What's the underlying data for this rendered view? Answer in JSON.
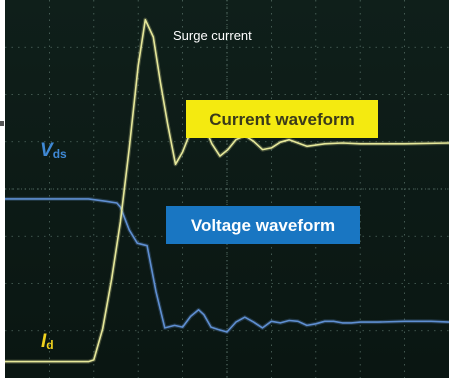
{
  "chart_data": {
    "type": "line",
    "title": "",
    "xlabel": "",
    "ylabel": "",
    "colors": {
      "background": "#0d1a16",
      "grid": "#6e8a80",
      "current_trace": "#e6e89a",
      "voltage_trace": "#5f8fd2"
    },
    "series": [
      {
        "name": "Vds",
        "label": "V",
        "subscript": "ds",
        "color": "#4a86c8",
        "values": [
          [
            0.0,
            0.58
          ],
          [
            0.5,
            0.58
          ],
          [
            0.94,
            0.58
          ],
          [
            1.14,
            0.55
          ],
          [
            1.26,
            0.53
          ],
          [
            1.3,
            0.48
          ],
          [
            1.4,
            0.2
          ],
          [
            1.49,
            0.04
          ],
          [
            1.6,
            0.01
          ],
          [
            1.7,
            -0.55
          ],
          [
            1.8,
            -0.99
          ],
          [
            1.91,
            -0.96
          ],
          [
            2.0,
            -0.98
          ],
          [
            2.09,
            -0.85
          ],
          [
            2.18,
            -0.77
          ],
          [
            2.24,
            -0.83
          ],
          [
            2.32,
            -0.98
          ],
          [
            2.4,
            -1.01
          ],
          [
            2.5,
            -1.04
          ],
          [
            2.6,
            -0.92
          ],
          [
            2.7,
            -0.86
          ],
          [
            2.8,
            -0.92
          ],
          [
            2.9,
            -0.99
          ],
          [
            3.0,
            -0.91
          ],
          [
            3.1,
            -0.93
          ],
          [
            3.2,
            -0.9
          ],
          [
            3.3,
            -0.91
          ],
          [
            3.4,
            -0.96
          ],
          [
            3.5,
            -0.94
          ],
          [
            3.6,
            -0.91
          ],
          [
            3.7,
            -0.91
          ],
          [
            3.8,
            -0.93
          ],
          [
            3.9,
            -0.93
          ],
          [
            4.0,
            -0.92
          ],
          [
            4.2,
            -0.92
          ],
          [
            4.5,
            -0.91
          ],
          [
            4.8,
            -0.91
          ],
          [
            5.0,
            -0.92
          ]
        ]
      },
      {
        "name": "Id",
        "label": "I",
        "subscript": "d",
        "color": "#f0d21e",
        "values": [
          [
            0.0,
            -1.4
          ],
          [
            0.5,
            -1.4
          ],
          [
            0.94,
            -1.4
          ],
          [
            1.0,
            -1.38
          ],
          [
            1.1,
            -1.0
          ],
          [
            1.2,
            -0.4
          ],
          [
            1.3,
            0.3
          ],
          [
            1.4,
            1.2
          ],
          [
            1.5,
            2.2
          ],
          [
            1.58,
            2.76
          ],
          [
            1.67,
            2.55
          ],
          [
            1.75,
            2.0
          ],
          [
            1.83,
            1.5
          ],
          [
            1.92,
            1.0
          ],
          [
            2.0,
            1.15
          ],
          [
            2.09,
            1.4
          ],
          [
            2.17,
            1.55
          ],
          [
            2.25,
            1.45
          ],
          [
            2.33,
            1.25
          ],
          [
            2.42,
            1.1
          ],
          [
            2.51,
            1.18
          ],
          [
            2.6,
            1.3
          ],
          [
            2.7,
            1.35
          ],
          [
            2.8,
            1.28
          ],
          [
            2.9,
            1.18
          ],
          [
            3.0,
            1.2
          ],
          [
            3.1,
            1.27
          ],
          [
            3.2,
            1.3
          ],
          [
            3.3,
            1.26
          ],
          [
            3.4,
            1.22
          ],
          [
            3.6,
            1.25
          ],
          [
            3.8,
            1.26
          ],
          [
            4.0,
            1.25
          ],
          [
            4.5,
            1.25
          ],
          [
            5.0,
            1.26
          ]
        ]
      }
    ],
    "annotations": {
      "surge": "Surge current",
      "current_box": "Current waveform",
      "voltage_box": "Voltage waveform"
    },
    "grid": true,
    "grid_divisions": {
      "x": 10,
      "y": 8
    },
    "xlim": [
      0,
      5
    ],
    "ylim": [
      -1.6,
      3
    ]
  }
}
